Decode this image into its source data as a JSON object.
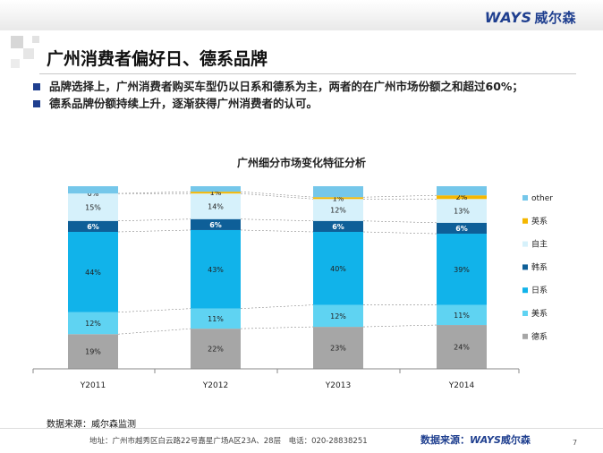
{
  "header": {
    "logo_en": "WAYS",
    "logo_cn": "威尔森",
    "title": "广州消费者偏好日、德系品牌"
  },
  "bullets": [
    "品牌选择上，广州消费者购买车型仍以日系和德系为主，两者的在广州市场份额之和超过60%；",
    "德系品牌份额持续上升，逐渐获得广州消费者的认可。"
  ],
  "chart_data": {
    "type": "bar",
    "stacked": true,
    "title": "广州细分市场变化特征分析",
    "categories": [
      "Y2011",
      "Y2012",
      "Y2013",
      "Y2014"
    ],
    "series": [
      {
        "name": "德系",
        "color": "#a6a6a6",
        "values": [
          19,
          22,
          23,
          24
        ],
        "labels": [
          "19%",
          "22%",
          "23%",
          "24%"
        ]
      },
      {
        "name": "美系",
        "color": "#5fd3f2",
        "values": [
          12,
          11,
          12,
          11
        ],
        "labels": [
          "12%",
          "11%",
          "12%",
          "11%"
        ]
      },
      {
        "name": "日系",
        "color": "#11b3ea",
        "values": [
          44,
          43,
          40,
          39
        ],
        "labels": [
          "44%",
          "43%",
          "40%",
          "39%"
        ]
      },
      {
        "name": "韩系",
        "color": "#0e5f98",
        "values": [
          6,
          6,
          6,
          6
        ],
        "labels": [
          "6%",
          "6%",
          "6%",
          "6%"
        ]
      },
      {
        "name": "自主",
        "color": "#d6f1fb",
        "values": [
          15,
          14,
          12,
          13
        ],
        "labels": [
          "15%",
          "14%",
          "12%",
          "13%"
        ]
      },
      {
        "name": "英系",
        "color": "#f5b700",
        "values": [
          0,
          1,
          1,
          2
        ],
        "labels": [
          "0%",
          "1%",
          "1%",
          "2%"
        ]
      },
      {
        "name": "other",
        "color": "#75c7ea",
        "values": [
          4,
          3,
          6,
          5
        ],
        "labels": [
          "",
          "",
          "",
          ""
        ]
      }
    ],
    "ylim": [
      0,
      100
    ],
    "legend": "right",
    "grid": false
  },
  "footer": {
    "source": "数据来源：威尔森监测",
    "address": "地址：广州市越秀区白云路22号嘉星广场A区23A、28层　电话：020-28838251",
    "logo_prefix": "数据来源：",
    "logo_en": "WAYS",
    "logo_cn": "威尔森",
    "page": "7"
  }
}
